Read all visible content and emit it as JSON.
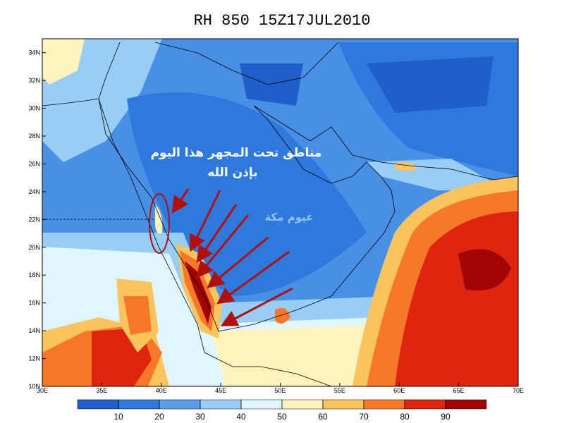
{
  "title": "RH 850 15Z17JUL2010",
  "lonlim": [
    30,
    70
  ],
  "latlim": [
    10,
    35
  ],
  "lon_ticks": [
    {
      "value": 30,
      "label": "30E"
    },
    {
      "value": 35,
      "label": "35E"
    },
    {
      "value": 40,
      "label": "40E"
    },
    {
      "value": 45,
      "label": "45E"
    },
    {
      "value": 50,
      "label": "50E"
    },
    {
      "value": 55,
      "label": "55E"
    },
    {
      "value": 60,
      "label": "60E"
    },
    {
      "value": 65,
      "label": "65E"
    },
    {
      "value": 70,
      "label": "70E"
    }
  ],
  "lat_ticks": [
    {
      "value": 10,
      "label": "10N"
    },
    {
      "value": 12,
      "label": "12N"
    },
    {
      "value": 14,
      "label": "14N"
    },
    {
      "value": 16,
      "label": "16N"
    },
    {
      "value": 18,
      "label": "18N"
    },
    {
      "value": 20,
      "label": "20N"
    },
    {
      "value": 22,
      "label": "22N"
    },
    {
      "value": 24,
      "label": "24N"
    },
    {
      "value": 26,
      "label": "26N"
    },
    {
      "value": 28,
      "label": "28N"
    },
    {
      "value": 30,
      "label": "30N"
    },
    {
      "value": 32,
      "label": "32N"
    },
    {
      "value": 34,
      "label": "34N"
    }
  ],
  "colorbar": {
    "lim": [
      0,
      100
    ],
    "ticks": [
      10,
      20,
      30,
      40,
      50,
      60,
      70,
      80,
      90
    ],
    "colors": [
      "#1f5fcc",
      "#2f78dc",
      "#5a9ee9",
      "#98cdf5",
      "#dff6ff",
      "#fff3bd",
      "#fcc45f",
      "#f7782a",
      "#de2510",
      "#a00404"
    ]
  },
  "annotations": {
    "headline": "مناطق تحت المجهر هذا اليوم",
    "subline": "بإذن الله",
    "cloud_label": "غيوم مكة"
  }
}
